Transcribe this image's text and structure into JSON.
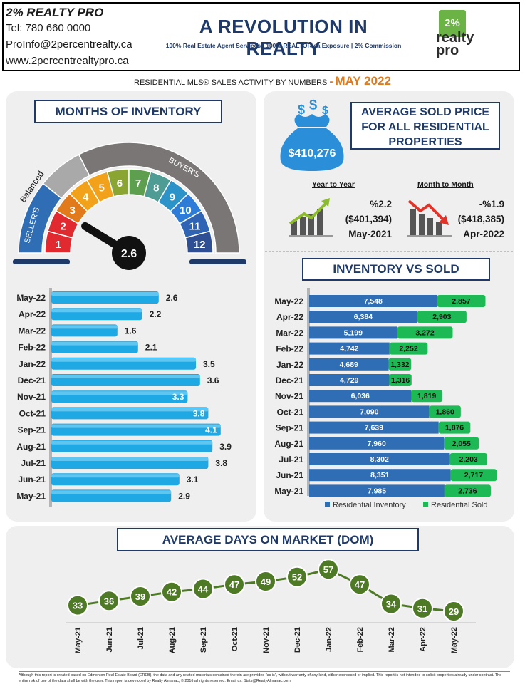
{
  "header": {
    "company": "2% REALTY PRO",
    "tel": "Tel: 780 660 0000",
    "email": "ProInfo@2percentrealty.ca",
    "web": "www.2percentrealtypro.ca",
    "headline": "A REVOLUTION IN REALTY",
    "tagline": "100% Real Estate Agent Services | 100% REALTOR.ca Exposure | 2% Commission",
    "logo_top": "2%",
    "logo_bottom_1": "realty",
    "logo_bottom_2": "pro"
  },
  "subtitle": {
    "text": "RESIDENTIAL MLS® SALES ACTIVITY BY NUMBERS",
    "dash": "-",
    "month": "MAY 2022"
  },
  "colors": {
    "navy": "#1f3a68",
    "orange": "#e07a1b",
    "bar_blue": "#1ea8e4",
    "inventory_blue": "#2f6db5",
    "sold_green": "#1db954",
    "dom_green": "#4e7a25"
  },
  "months_of_inventory": {
    "title": "MONTHS OF INVENTORY",
    "gauge": {
      "value": "2.6",
      "label_balanced": "Balanced",
      "label_sellers": "SELLER'S",
      "label_buyers": "BUYER'S",
      "segments": [
        "1",
        "2",
        "3",
        "4",
        "5",
        "6",
        "7",
        "8",
        "9",
        "10",
        "11",
        "12"
      ]
    }
  },
  "average_price": {
    "title_lines": [
      "AVERAGE  SOLD PRICE",
      "FOR ALL RESIDENTIAL",
      "PROPERTIES"
    ],
    "price": "$410,276",
    "bag_icon": "money-bag-icon",
    "yoy": {
      "heading": "Year to Year",
      "pct": "%2.2",
      "price": "($401,394)",
      "period": "May-2021",
      "icon": "trend-up-icon"
    },
    "mom": {
      "heading": "Month to Month",
      "pct": "-%1.9",
      "price": "($418,385)",
      "period": "Apr-2022",
      "icon": "trend-down-icon"
    }
  },
  "inventory_vs_sold_title": "INVENTORY VS SOLD",
  "dom_title": "AVERAGE DAYS ON MARKET (DOM)",
  "footer": "Although this report is created based on Edmonton Real Estate Board (EREB), the data and any related materials contained therein are provided \"as is\", without warranty of any kind, either expressed or implied. This report is not intended to solicit properties already under contract. The entire risk of use of the data shall be with the user. This report is developed by Realty Almanac, © 2016 all rights reserved. Email us: Stats@RealtyAlmanac.com",
  "chart_data": [
    {
      "type": "bar",
      "orientation": "horizontal",
      "categories": [
        "May-22",
        "Apr-22",
        "Mar-22",
        "Feb-22",
        "Jan-22",
        "Dec-21",
        "Nov-21",
        "Oct-21",
        "Sep-21",
        "Aug-21",
        "Jul-21",
        "Jun-21",
        "May-21"
      ],
      "values": [
        2.6,
        2.2,
        1.6,
        2.1,
        3.5,
        3.6,
        3.3,
        3.8,
        4.1,
        3.9,
        3.8,
        3.1,
        2.9
      ],
      "value_labels": [
        "2.6",
        "2.2",
        "1.6",
        "2.1",
        "3.5",
        "3.6",
        "3.3",
        "3.8",
        "4.1",
        "3.9",
        "3.8",
        "3.1",
        "2.9"
      ],
      "xlim": [
        0,
        5
      ]
    },
    {
      "type": "bar",
      "orientation": "horizontal",
      "stacked": true,
      "categories": [
        "May-22",
        "Apr-22",
        "Mar-22",
        "Feb-22",
        "Jan-22",
        "Dec-21",
        "Nov-21",
        "Oct-21",
        "Sep-21",
        "Aug-21",
        "Jul-21",
        "Jun-21",
        "May-21"
      ],
      "series": [
        {
          "name": "Residential Inventory",
          "values": [
            7548,
            6384,
            5199,
            4742,
            4689,
            4729,
            6036,
            7090,
            7639,
            7960,
            8302,
            8351,
            7985
          ],
          "labels": [
            "7,548",
            "6,384",
            "5,199",
            "4,742",
            "4,689",
            "4,729",
            "6,036",
            "7,090",
            "7,639",
            "7,960",
            "8,302",
            "8,351",
            "7,985"
          ]
        },
        {
          "name": "Residential Sold",
          "values": [
            2857,
            2903,
            3272,
            2252,
            1332,
            1316,
            1819,
            1860,
            1876,
            2055,
            2203,
            2717,
            2736
          ],
          "labels": [
            "2,857",
            "2,903",
            "3,272",
            "2,252",
            "1,332",
            "1,316",
            "1,819",
            "1,860",
            "1,876",
            "2,055",
            "2,203",
            "2,717",
            "2,736"
          ]
        }
      ],
      "legend": "bottom"
    },
    {
      "type": "line",
      "categories": [
        "May-21",
        "Jun-21",
        "Jul-21",
        "Aug-21",
        "Sep-21",
        "Oct-21",
        "Nov-21",
        "Dec-21",
        "Jan-22",
        "Feb-22",
        "Mar-22",
        "Apr-22",
        "May-22"
      ],
      "values": [
        33,
        36,
        39,
        42,
        44,
        47,
        49,
        52,
        57,
        47,
        34,
        31,
        29
      ],
      "value_labels": [
        "33",
        "36",
        "39",
        "42",
        "44",
        "47",
        "49",
        "52",
        "57",
        "47",
        "34",
        "31",
        "29"
      ]
    }
  ]
}
